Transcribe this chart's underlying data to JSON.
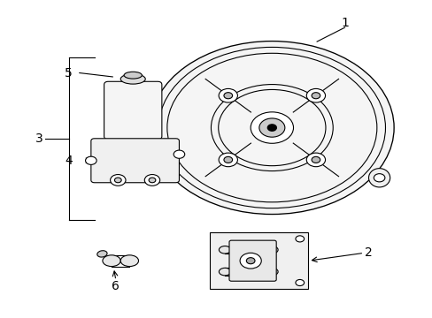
{
  "title": "",
  "background_color": "#ffffff",
  "figure_width": 4.89,
  "figure_height": 3.6,
  "dpi": 100,
  "line_color": "#000000",
  "text_color": "#000000",
  "line_width": 0.8
}
